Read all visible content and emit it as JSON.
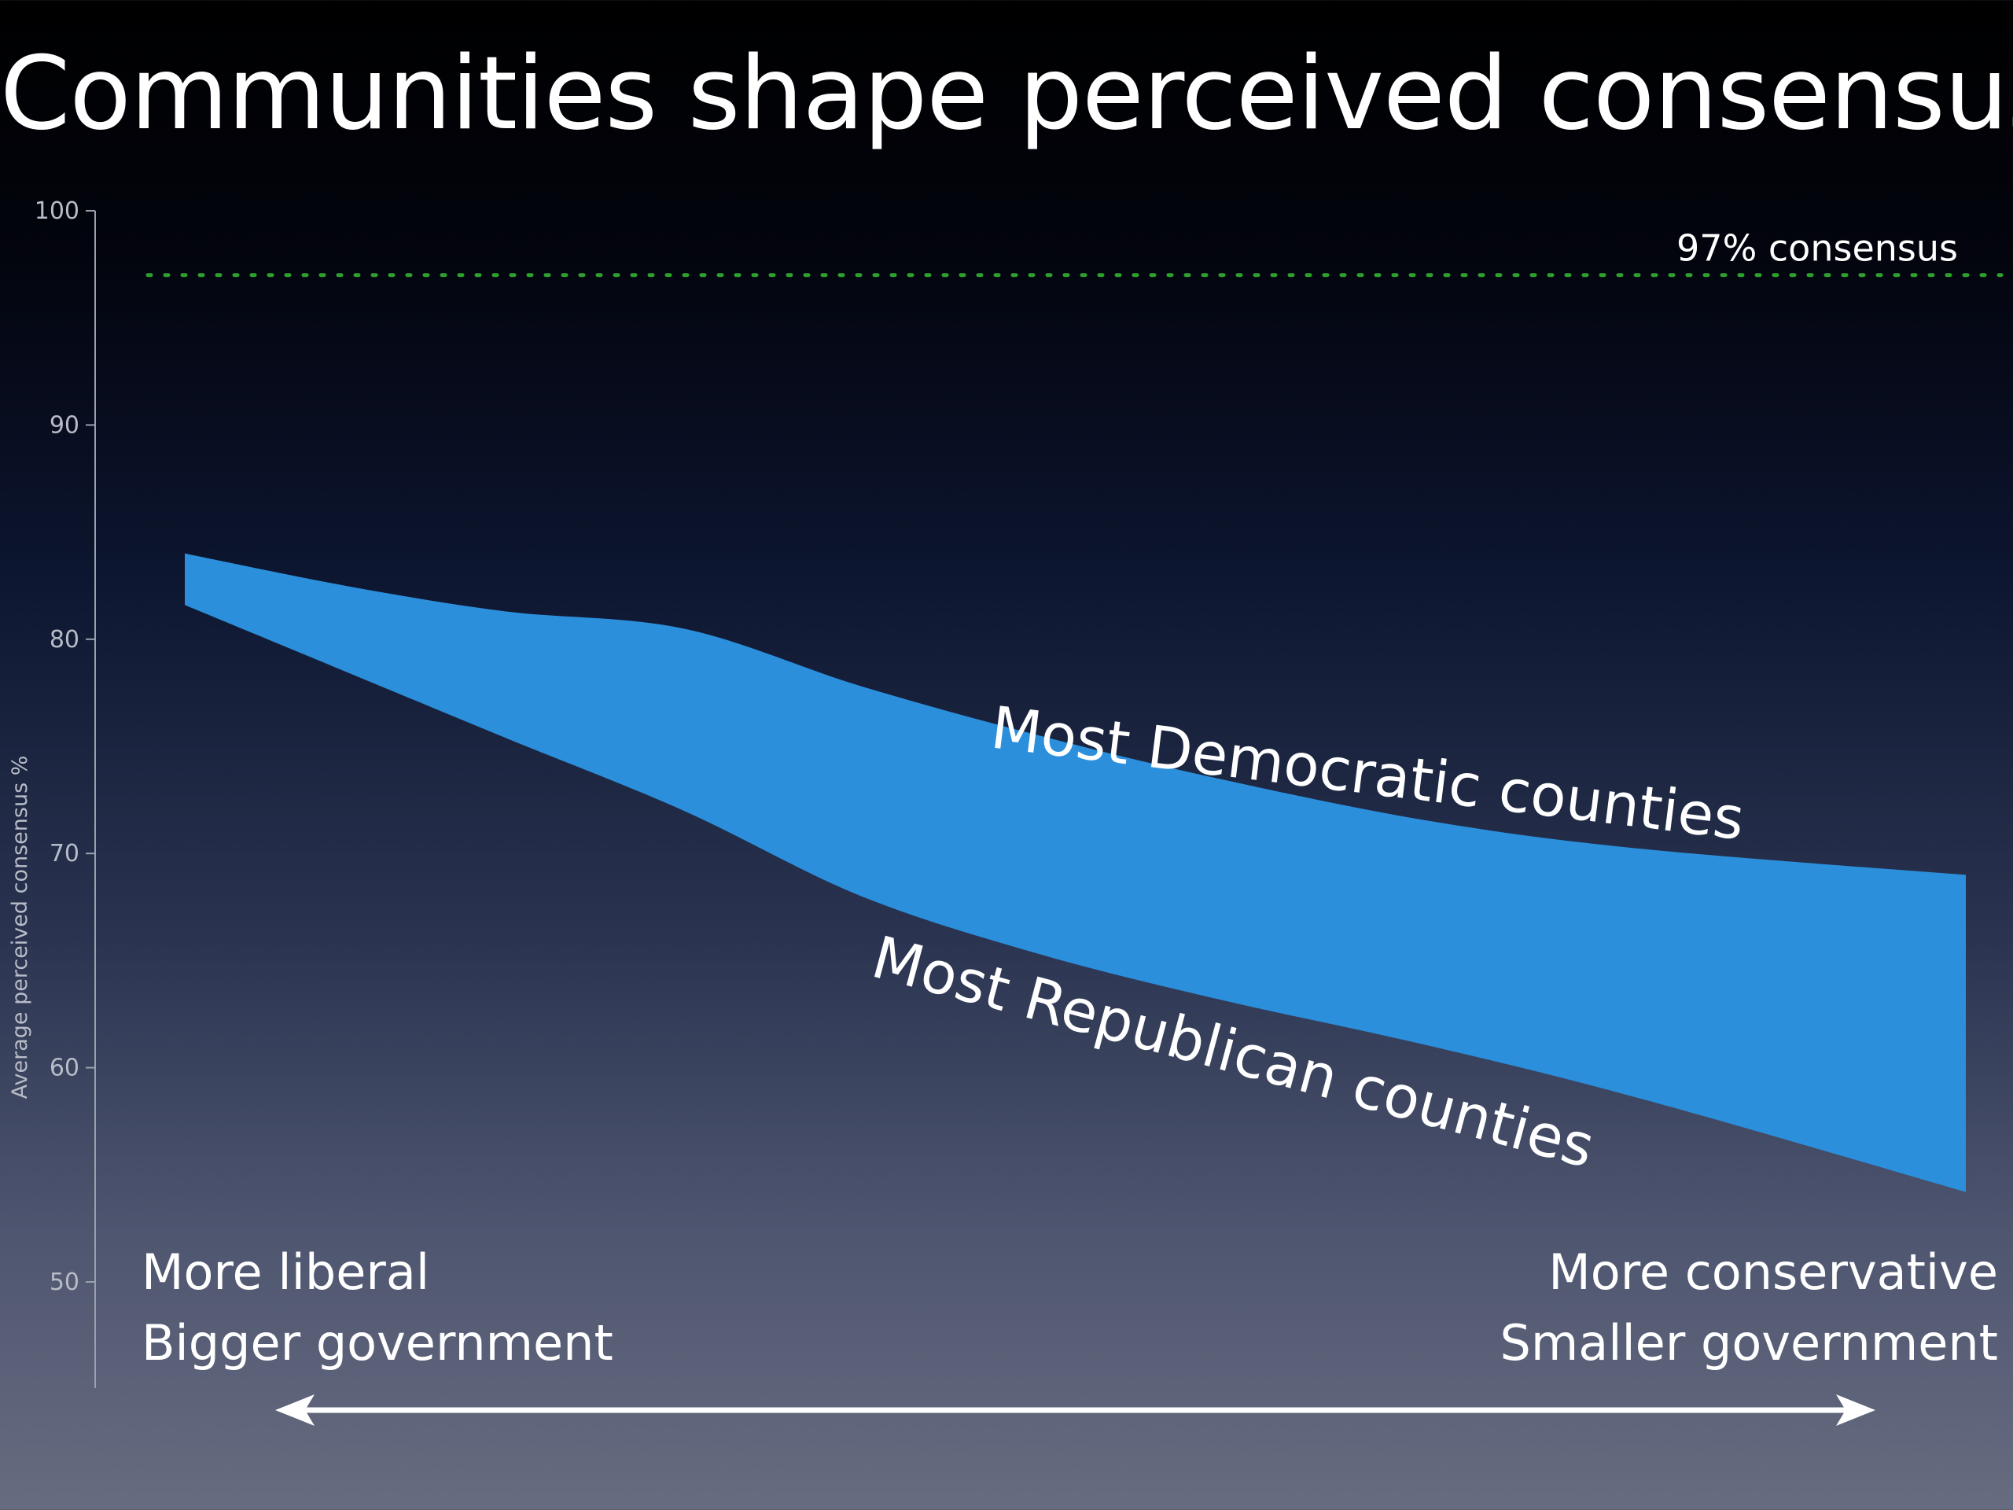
{
  "title": "Communities shape perceived consensus",
  "chart_data": {
    "type": "area",
    "title": "Communities shape perceived consensus",
    "ylabel": "Average perceived consensus %",
    "ylim": [
      50,
      100
    ],
    "yticks": [
      100,
      90,
      80,
      70,
      60,
      50
    ],
    "x_range": [
      0,
      1
    ],
    "reference_line": {
      "value": 97,
      "label": "97% consensus",
      "color": "#2fa02f",
      "style": "dotted"
    },
    "x_annotations": {
      "left": [
        "More liberal",
        "Bigger government"
      ],
      "right": [
        "More conservative",
        "Smaller government"
      ]
    },
    "band_color": "#2b8fdc",
    "series": [
      {
        "name": "Most Democratic counties",
        "x": [
          0.0,
          0.09,
          0.18,
          0.28,
          0.38,
          0.48,
          0.58,
          0.7,
          0.82,
          1.0
        ],
        "values": [
          84.0,
          82.5,
          81.3,
          80.5,
          77.8,
          75.5,
          73.5,
          71.5,
          70.2,
          69.0
        ]
      },
      {
        "name": "Most Republican counties",
        "x": [
          0.0,
          0.09,
          0.18,
          0.28,
          0.38,
          0.48,
          0.58,
          0.7,
          0.82,
          1.0
        ],
        "values": [
          81.6,
          78.5,
          75.4,
          72.0,
          68.0,
          65.3,
          63.2,
          61.0,
          58.5,
          54.2
        ]
      }
    ]
  },
  "arrow": {
    "direction": "both",
    "color": "#ffffff"
  }
}
